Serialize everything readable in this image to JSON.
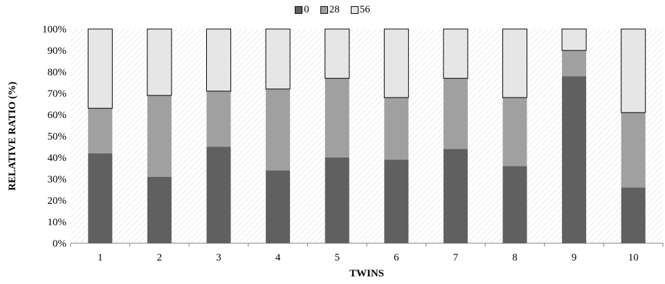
{
  "chart_data": {
    "type": "bar",
    "stacked": true,
    "percent": true,
    "categories": [
      "1",
      "2",
      "3",
      "4",
      "5",
      "6",
      "7",
      "8",
      "9",
      "10"
    ],
    "series": [
      {
        "name": "0",
        "color": "#606060",
        "values": [
          42,
          31,
          45,
          34,
          40,
          39,
          44,
          36,
          78,
          26
        ]
      },
      {
        "name": "28",
        "color": "#a0a0a0",
        "values": [
          21,
          38,
          26,
          38,
          37,
          29,
          33,
          32,
          12,
          35
        ]
      },
      {
        "name": "56",
        "color": "#e6e6e6",
        "values": [
          37,
          31,
          29,
          28,
          23,
          32,
          23,
          32,
          10,
          39
        ]
      }
    ],
    "xlabel": "TWINS",
    "ylabel": "RELATIVE RATIO (%)",
    "ylim": [
      0,
      100
    ],
    "yticks": [
      "0%",
      "10%",
      "20%",
      "30%",
      "40%",
      "50%",
      "60%",
      "70%",
      "80%",
      "90%",
      "100%"
    ],
    "legend_position": "top-center",
    "background": "diagonal-hatch",
    "grid": false
  }
}
